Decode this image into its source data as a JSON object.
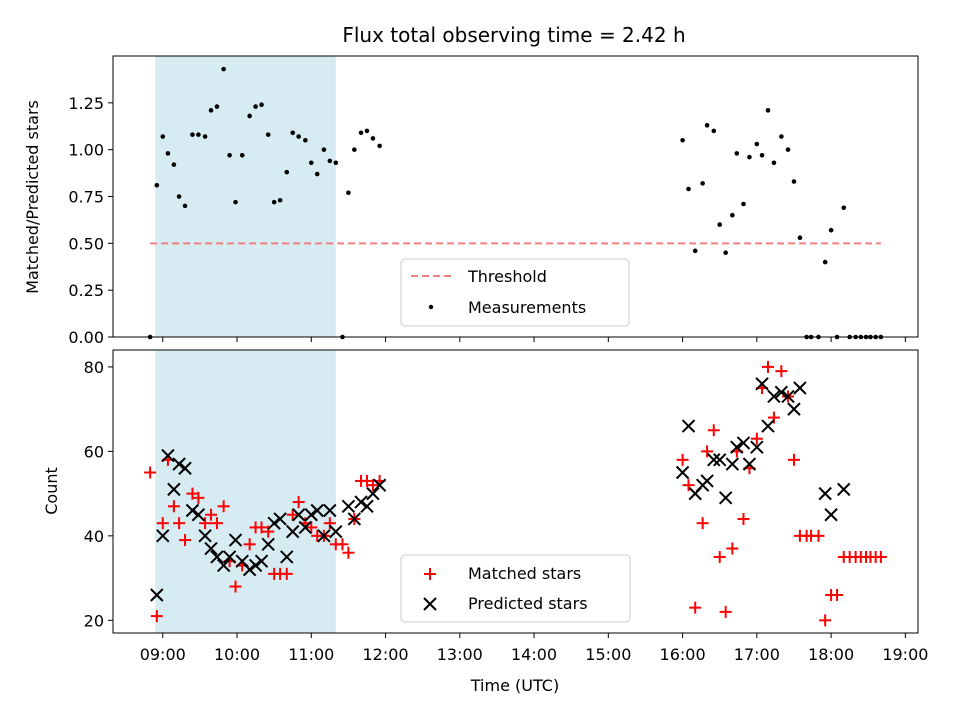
{
  "chart_data": {
    "type": "scatter",
    "title": "Flux total observing time = 2.42 h",
    "xlabel": "Time (UTC)",
    "x_unit": "hours UTC",
    "xlim": [
      8.33,
      19.17
    ],
    "x_ticks": [
      9,
      10,
      11,
      12,
      13,
      14,
      15,
      16,
      17,
      18,
      19
    ],
    "x_tick_labels": [
      "09:00",
      "10:00",
      "11:00",
      "12:00",
      "13:00",
      "14:00",
      "15:00",
      "16:00",
      "17:00",
      "18:00",
      "19:00"
    ],
    "shaded_interval": {
      "start": 8.9,
      "end": 11.33,
      "color": "#add8e6"
    },
    "top_panel": {
      "ylabel": "Matched/Predicted stars",
      "ylim": [
        0,
        1.5
      ],
      "y_ticks": [
        0,
        0.25,
        0.5,
        0.75,
        1.0,
        1.25
      ],
      "y_tick_labels": [
        "0.00",
        "0.25",
        "0.50",
        "0.75",
        "1.00",
        "1.25"
      ],
      "threshold": {
        "name": "Threshold",
        "y": 0.5,
        "x_range": [
          8.83,
          18.67
        ],
        "color": "#f08080"
      },
      "measurements_name": "Measurements",
      "measurements": [
        [
          8.83,
          0.0
        ],
        [
          8.92,
          0.81
        ],
        [
          9.0,
          1.07
        ],
        [
          9.07,
          0.98
        ],
        [
          9.15,
          0.92
        ],
        [
          9.22,
          0.75
        ],
        [
          9.3,
          0.7
        ],
        [
          9.4,
          1.08
        ],
        [
          9.48,
          1.08
        ],
        [
          9.57,
          1.07
        ],
        [
          9.65,
          1.21
        ],
        [
          9.73,
          1.23
        ],
        [
          9.82,
          1.43
        ],
        [
          9.9,
          0.97
        ],
        [
          9.98,
          0.72
        ],
        [
          10.07,
          0.97
        ],
        [
          10.17,
          1.18
        ],
        [
          10.25,
          1.23
        ],
        [
          10.33,
          1.24
        ],
        [
          10.42,
          1.08
        ],
        [
          10.5,
          0.72
        ],
        [
          10.58,
          0.73
        ],
        [
          10.67,
          0.88
        ],
        [
          10.75,
          1.09
        ],
        [
          10.83,
          1.07
        ],
        [
          10.92,
          1.05
        ],
        [
          11.0,
          0.93
        ],
        [
          11.08,
          0.87
        ],
        [
          11.17,
          1.0
        ],
        [
          11.25,
          0.94
        ],
        [
          11.33,
          0.93
        ],
        [
          11.42,
          0.0
        ],
        [
          11.5,
          0.77
        ],
        [
          11.58,
          1.0
        ],
        [
          11.67,
          1.09
        ],
        [
          11.75,
          1.1
        ],
        [
          11.83,
          1.06
        ],
        [
          11.92,
          1.02
        ],
        [
          16.0,
          1.05
        ],
        [
          16.08,
          0.79
        ],
        [
          16.17,
          0.46
        ],
        [
          16.27,
          0.82
        ],
        [
          16.33,
          1.13
        ],
        [
          16.42,
          1.1
        ],
        [
          16.5,
          0.6
        ],
        [
          16.58,
          0.45
        ],
        [
          16.67,
          0.65
        ],
        [
          16.73,
          0.98
        ],
        [
          16.82,
          0.71
        ],
        [
          16.9,
          0.96
        ],
        [
          17.0,
          1.03
        ],
        [
          17.07,
          0.97
        ],
        [
          17.15,
          1.21
        ],
        [
          17.23,
          0.93
        ],
        [
          17.33,
          1.07
        ],
        [
          17.42,
          1.0
        ],
        [
          17.5,
          0.83
        ],
        [
          17.58,
          0.53
        ],
        [
          17.67,
          0.0
        ],
        [
          17.73,
          0.0
        ],
        [
          17.83,
          0.0
        ],
        [
          17.92,
          0.4
        ],
        [
          18.0,
          0.57
        ],
        [
          18.08,
          0.0
        ],
        [
          18.17,
          0.69
        ],
        [
          18.25,
          0.0
        ],
        [
          18.33,
          0.0
        ],
        [
          18.4,
          0.0
        ],
        [
          18.47,
          0.0
        ],
        [
          18.53,
          0.0
        ],
        [
          18.6,
          0.0
        ],
        [
          18.67,
          0.0
        ]
      ]
    },
    "bottom_panel": {
      "ylabel": "Count",
      "ylim": [
        17,
        84
      ],
      "y_ticks": [
        20,
        40,
        60,
        80
      ],
      "y_tick_labels": [
        "20",
        "40",
        "60",
        "80"
      ],
      "series": [
        {
          "name": "Matched stars",
          "marker": "+",
          "color": "#ff0000",
          "points": [
            [
              8.83,
              55
            ],
            [
              8.92,
              21
            ],
            [
              9.0,
              43
            ],
            [
              9.07,
              58
            ],
            [
              9.15,
              47
            ],
            [
              9.22,
              43
            ],
            [
              9.3,
              39
            ],
            [
              9.4,
              50
            ],
            [
              9.48,
              49
            ],
            [
              9.57,
              43
            ],
            [
              9.65,
              45
            ],
            [
              9.73,
              43
            ],
            [
              9.82,
              47
            ],
            [
              9.9,
              34
            ],
            [
              9.98,
              28
            ],
            [
              10.07,
              33
            ],
            [
              10.17,
              38
            ],
            [
              10.25,
              42
            ],
            [
              10.33,
              42
            ],
            [
              10.42,
              41
            ],
            [
              10.5,
              31
            ],
            [
              10.58,
              31
            ],
            [
              10.67,
              31
            ],
            [
              10.75,
              45
            ],
            [
              10.83,
              48
            ],
            [
              10.92,
              43
            ],
            [
              11.0,
              42
            ],
            [
              11.08,
              40
            ],
            [
              11.17,
              40
            ],
            [
              11.25,
              43
            ],
            [
              11.33,
              38
            ],
            [
              11.42,
              38
            ],
            [
              11.5,
              36
            ],
            [
              11.58,
              44
            ],
            [
              11.67,
              53
            ],
            [
              11.75,
              53
            ],
            [
              11.83,
              52
            ],
            [
              11.92,
              53
            ],
            [
              16.0,
              58
            ],
            [
              16.08,
              52
            ],
            [
              16.17,
              23
            ],
            [
              16.27,
              43
            ],
            [
              16.33,
              60
            ],
            [
              16.42,
              65
            ],
            [
              16.5,
              35
            ],
            [
              16.58,
              22
            ],
            [
              16.67,
              37
            ],
            [
              16.73,
              60
            ],
            [
              16.82,
              44
            ],
            [
              16.9,
              56
            ],
            [
              17.0,
              63
            ],
            [
              17.07,
              75
            ],
            [
              17.15,
              80
            ],
            [
              17.23,
              68
            ],
            [
              17.33,
              79
            ],
            [
              17.42,
              73
            ],
            [
              17.5,
              58
            ],
            [
              17.58,
              40
            ],
            [
              17.67,
              40
            ],
            [
              17.73,
              40
            ],
            [
              17.83,
              40
            ],
            [
              17.92,
              20
            ],
            [
              18.0,
              26
            ],
            [
              18.08,
              26
            ],
            [
              18.17,
              35
            ],
            [
              18.25,
              35
            ],
            [
              18.33,
              35
            ],
            [
              18.4,
              35
            ],
            [
              18.47,
              35
            ],
            [
              18.53,
              35
            ],
            [
              18.6,
              35
            ],
            [
              18.67,
              35
            ]
          ]
        },
        {
          "name": "Predicted stars",
          "marker": "x",
          "color": "#000000",
          "points": [
            [
              8.92,
              26
            ],
            [
              9.0,
              40
            ],
            [
              9.07,
              59
            ],
            [
              9.15,
              51
            ],
            [
              9.22,
              57
            ],
            [
              9.3,
              56
            ],
            [
              9.4,
              46
            ],
            [
              9.48,
              45
            ],
            [
              9.57,
              40
            ],
            [
              9.65,
              37
            ],
            [
              9.73,
              35
            ],
            [
              9.82,
              33
            ],
            [
              9.9,
              35
            ],
            [
              9.98,
              39
            ],
            [
              10.07,
              34
            ],
            [
              10.17,
              32
            ],
            [
              10.25,
              33
            ],
            [
              10.33,
              34
            ],
            [
              10.42,
              38
            ],
            [
              10.5,
              43
            ],
            [
              10.58,
              44
            ],
            [
              10.67,
              35
            ],
            [
              10.75,
              41
            ],
            [
              10.83,
              45
            ],
            [
              10.92,
              42
            ],
            [
              11.0,
              45
            ],
            [
              11.08,
              46
            ],
            [
              11.17,
              40
            ],
            [
              11.25,
              46
            ],
            [
              11.33,
              41
            ],
            [
              11.5,
              47
            ],
            [
              11.58,
              44
            ],
            [
              11.67,
              48
            ],
            [
              11.75,
              47
            ],
            [
              11.83,
              50
            ],
            [
              11.92,
              52
            ],
            [
              16.0,
              55
            ],
            [
              16.08,
              66
            ],
            [
              16.17,
              50
            ],
            [
              16.27,
              52
            ],
            [
              16.33,
              53
            ],
            [
              16.42,
              58
            ],
            [
              16.5,
              58
            ],
            [
              16.58,
              49
            ],
            [
              16.67,
              57
            ],
            [
              16.73,
              61
            ],
            [
              16.82,
              62
            ],
            [
              16.9,
              57
            ],
            [
              17.0,
              61
            ],
            [
              17.07,
              76
            ],
            [
              17.15,
              66
            ],
            [
              17.23,
              73
            ],
            [
              17.33,
              74
            ],
            [
              17.42,
              73
            ],
            [
              17.5,
              70
            ],
            [
              17.58,
              75
            ],
            [
              17.92,
              50
            ],
            [
              18.0,
              45
            ],
            [
              18.17,
              51
            ]
          ]
        }
      ]
    }
  }
}
